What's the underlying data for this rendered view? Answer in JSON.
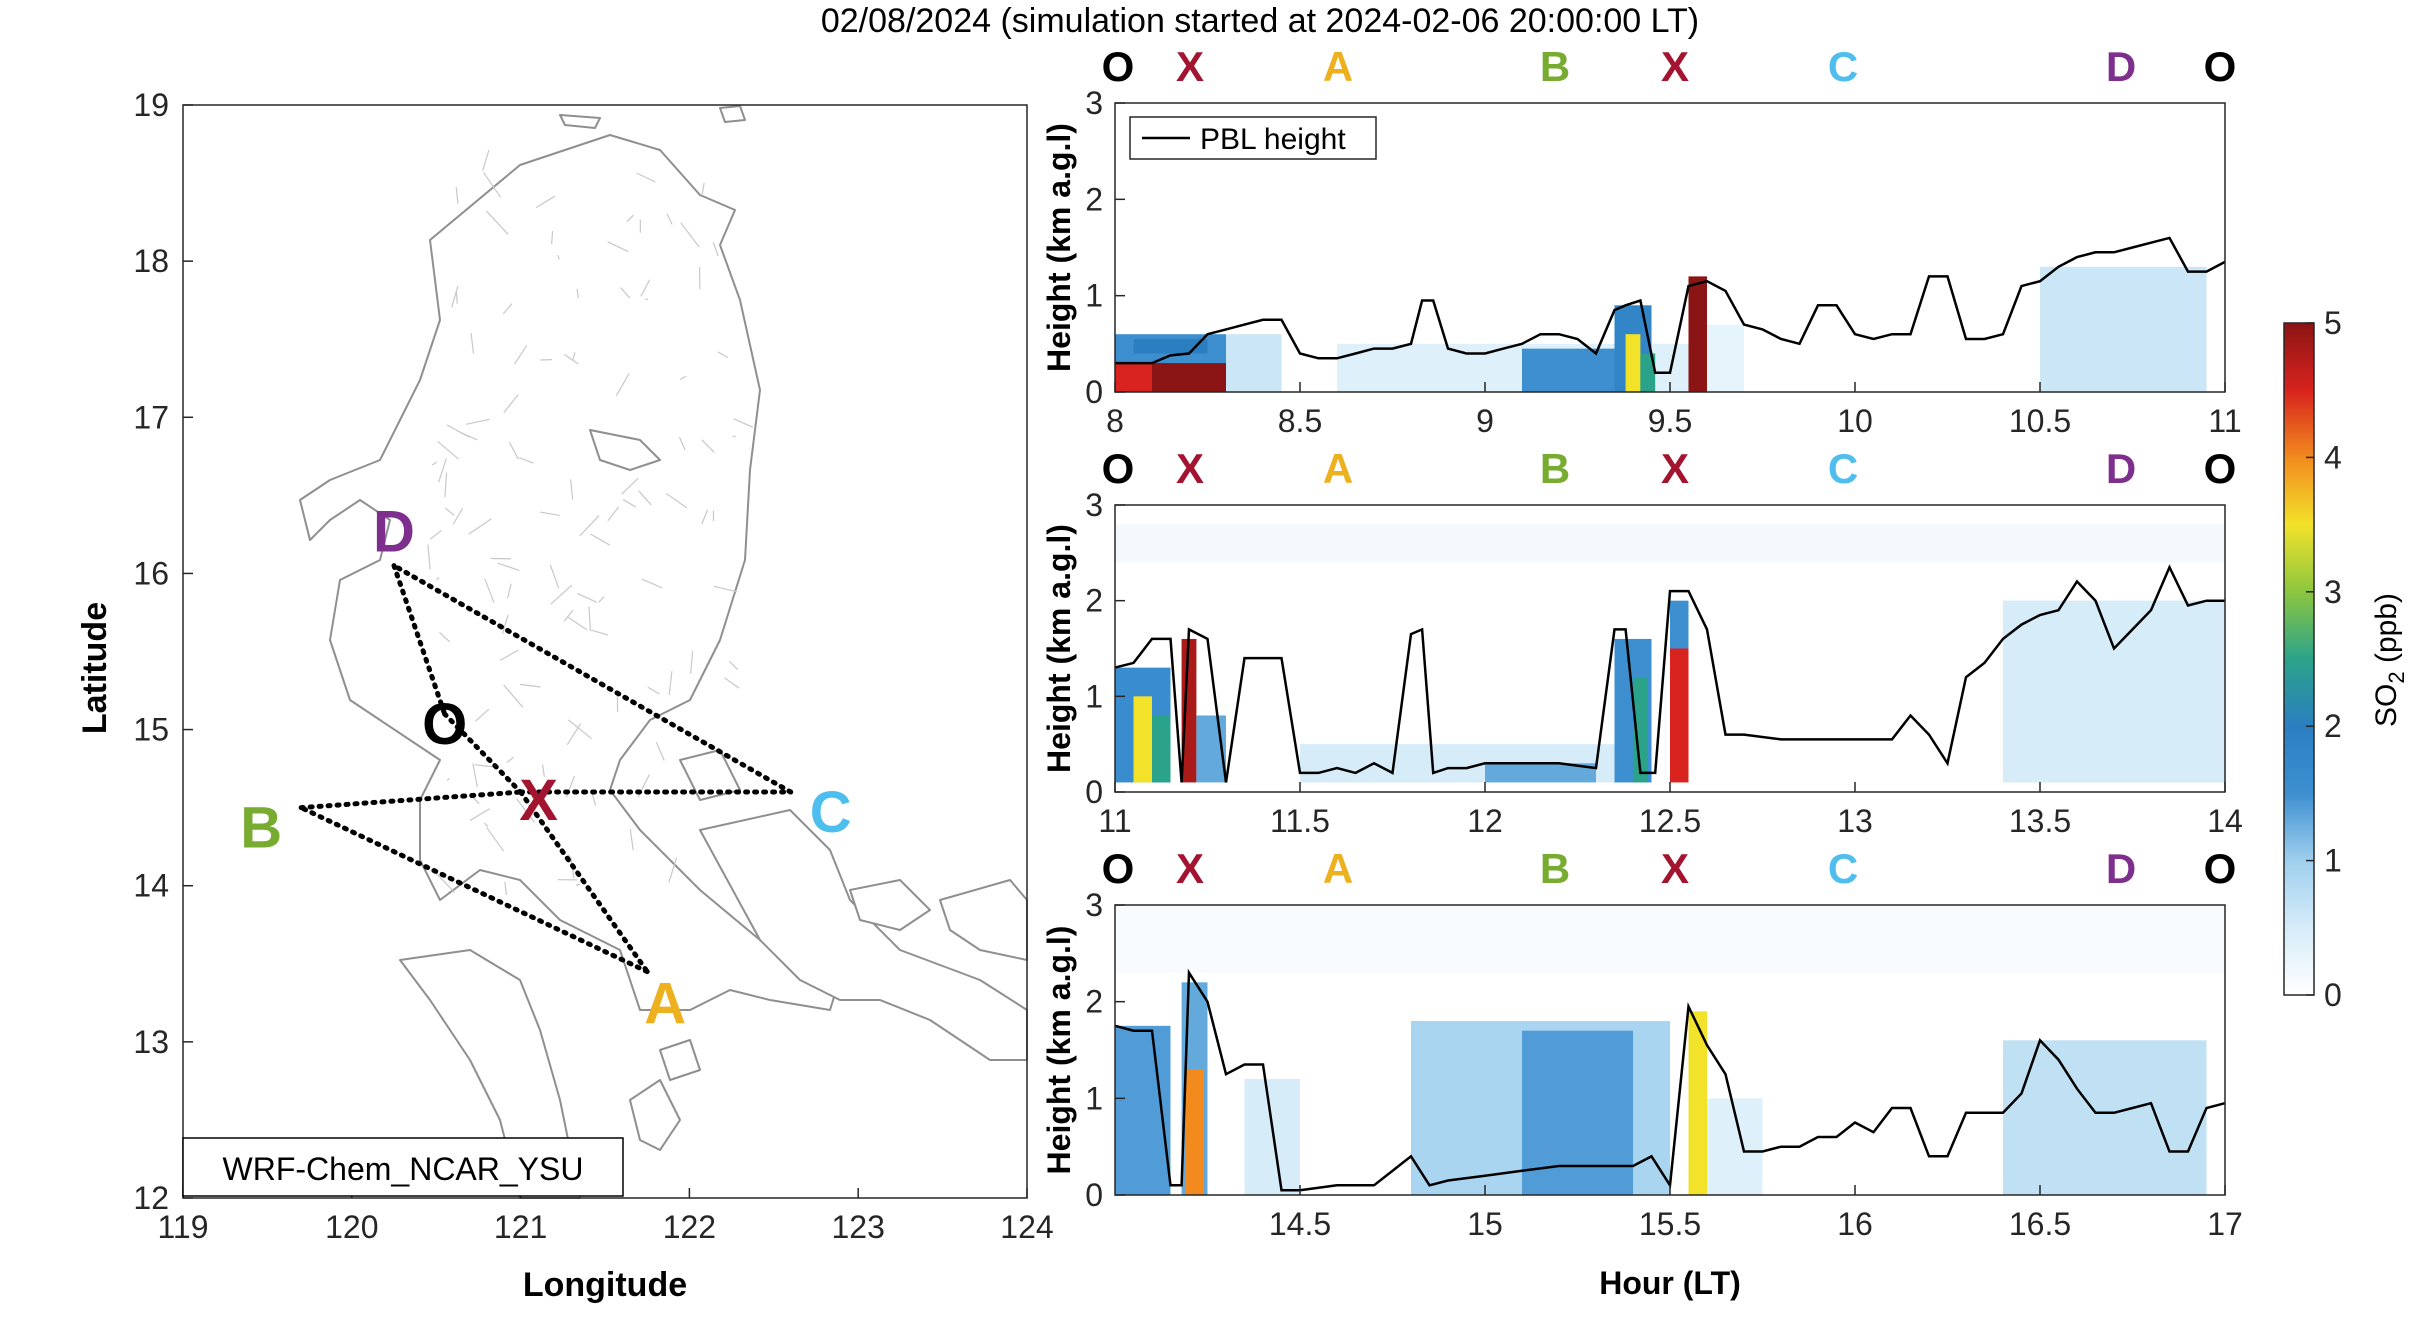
{
  "title": "02/08/2024 (simulation started at 2024-02-06 20:00:00 LT)",
  "colors": {
    "O": "#000000",
    "X": "#a2142f",
    "A": "#edb120",
    "B": "#77ac30",
    "C": "#4dbeee",
    "D": "#7e2f8e",
    "pbl": "#000000"
  },
  "route_letters": [
    "O",
    "X",
    "A",
    "B",
    "X",
    "C",
    "D",
    "O"
  ],
  "chart_data": [
    {
      "type": "map",
      "xlabel": "Longitude",
      "ylabel": "Latitude",
      "xlim": [
        119,
        124
      ],
      "ylim": [
        12,
        19
      ],
      "xticks": [
        "119",
        "120",
        "121",
        "122",
        "123",
        "124"
      ],
      "yticks": [
        "12",
        "13",
        "14",
        "15",
        "16",
        "17",
        "18",
        "19"
      ],
      "model_label": "WRF-Chem_NCAR_YSU",
      "points": [
        {
          "name": "D",
          "lon": 120.25,
          "lat": 16.05
        },
        {
          "name": "O",
          "lon": 120.55,
          "lat": 15.1
        },
        {
          "name": "X",
          "lon": 121.0,
          "lat": 14.6
        },
        {
          "name": "C",
          "lon": 122.6,
          "lat": 14.6
        },
        {
          "name": "B",
          "lon": 119.7,
          "lat": 14.5
        },
        {
          "name": "A",
          "lon": 121.75,
          "lat": 13.45
        }
      ],
      "paths": [
        [
          "D",
          "O"
        ],
        [
          "O",
          "X"
        ],
        [
          "X",
          "A"
        ],
        [
          "A",
          "B"
        ],
        [
          "B",
          "X"
        ],
        [
          "X",
          "C"
        ],
        [
          "C",
          "D"
        ]
      ]
    },
    {
      "type": "heatmap",
      "ylabel": "Height (km a.g.l)",
      "xlim": [
        8,
        11
      ],
      "ylim": [
        0,
        3
      ],
      "xticks": [
        "8",
        "8.5",
        "9",
        "9.5",
        "10",
        "10.5",
        "11"
      ],
      "yticks": [
        "0",
        "1",
        "2",
        "3"
      ],
      "legend": "PBL height",
      "pbl_height": {
        "x": [
          8.0,
          8.05,
          8.1,
          8.15,
          8.2,
          8.25,
          8.3,
          8.35,
          8.4,
          8.45,
          8.5,
          8.55,
          8.6,
          8.65,
          8.7,
          8.75,
          8.8,
          8.83,
          8.86,
          8.9,
          8.95,
          9.0,
          9.05,
          9.1,
          9.15,
          9.2,
          9.25,
          9.3,
          9.35,
          9.38,
          9.42,
          9.46,
          9.5,
          9.55,
          9.6,
          9.65,
          9.7,
          9.75,
          9.8,
          9.85,
          9.9,
          9.95,
          10.0,
          10.05,
          10.1,
          10.15,
          10.2,
          10.25,
          10.3,
          10.35,
          10.4,
          10.45,
          10.5,
          10.55,
          10.6,
          10.65,
          10.7,
          10.75,
          10.8,
          10.85,
          10.9,
          10.95,
          11.0
        ],
        "y": [
          0.3,
          0.3,
          0.3,
          0.38,
          0.4,
          0.6,
          0.65,
          0.7,
          0.75,
          0.75,
          0.4,
          0.35,
          0.35,
          0.4,
          0.45,
          0.45,
          0.5,
          0.95,
          0.95,
          0.45,
          0.4,
          0.4,
          0.45,
          0.5,
          0.6,
          0.6,
          0.55,
          0.4,
          0.85,
          0.9,
          0.95,
          0.2,
          0.2,
          1.1,
          1.15,
          1.05,
          0.7,
          0.65,
          0.55,
          0.5,
          0.9,
          0.9,
          0.6,
          0.55,
          0.6,
          0.6,
          1.2,
          1.2,
          0.55,
          0.55,
          0.6,
          1.1,
          1.15,
          1.3,
          1.4,
          1.45,
          1.45,
          1.5,
          1.55,
          1.6,
          1.25,
          1.25,
          1.35
        ]
      },
      "so2_cells": [
        {
          "x0": 8.05,
          "x1": 8.3,
          "y0": 0.0,
          "y1": 0.35,
          "v": 5
        },
        {
          "x0": 8.0,
          "x1": 8.1,
          "y0": 0.0,
          "y1": 0.3,
          "v": 4.5
        },
        {
          "x0": 8.0,
          "x1": 8.3,
          "y0": 0.3,
          "y1": 0.6,
          "v": 1.5
        },
        {
          "x0": 8.05,
          "x1": 8.25,
          "y0": 0.4,
          "y1": 0.55,
          "v": 2
        },
        {
          "x0": 8.3,
          "x1": 8.45,
          "y0": 0.0,
          "y1": 0.6,
          "v": 0.6
        },
        {
          "x0": 8.6,
          "x1": 9.6,
          "y0": 0.0,
          "y1": 0.5,
          "v": 0.4
        },
        {
          "x0": 9.1,
          "x1": 9.35,
          "y0": 0.0,
          "y1": 0.45,
          "v": 1.5
        },
        {
          "x0": 9.35,
          "x1": 9.45,
          "y0": 0.0,
          "y1": 0.9,
          "v": 1.8
        },
        {
          "x0": 9.38,
          "x1": 9.42,
          "y0": 0.0,
          "y1": 0.6,
          "v": 3.5
        },
        {
          "x0": 9.42,
          "x1": 9.46,
          "y0": 0.0,
          "y1": 0.4,
          "v": 2.5
        },
        {
          "x0": 9.55,
          "x1": 9.6,
          "y0": 0.0,
          "y1": 1.2,
          "v": 5
        },
        {
          "x0": 9.6,
          "x1": 9.7,
          "y0": 0.0,
          "y1": 0.7,
          "v": 0.3
        },
        {
          "x0": 10.5,
          "x1": 10.95,
          "y0": 0.0,
          "y1": 1.3,
          "v": 0.6
        }
      ]
    },
    {
      "type": "heatmap",
      "ylabel": "Height (km a.g.l)",
      "xlim": [
        11,
        14
      ],
      "ylim": [
        0,
        3
      ],
      "xticks": [
        "11",
        "11.5",
        "12",
        "12.5",
        "13",
        "13.5",
        "14"
      ],
      "yticks": [
        "0",
        "1",
        "2",
        "3"
      ],
      "pbl_height": {
        "x": [
          11.0,
          11.05,
          11.1,
          11.15,
          11.18,
          11.2,
          11.25,
          11.3,
          11.35,
          11.4,
          11.45,
          11.5,
          11.55,
          11.6,
          11.65,
          11.7,
          11.75,
          11.8,
          11.83,
          11.86,
          11.9,
          11.95,
          12.0,
          12.1,
          12.2,
          12.3,
          12.35,
          12.38,
          12.42,
          12.46,
          12.5,
          12.55,
          12.6,
          12.65,
          12.7,
          12.8,
          12.9,
          13.0,
          13.1,
          13.15,
          13.2,
          13.25,
          13.3,
          13.35,
          13.4,
          13.45,
          13.5,
          13.55,
          13.6,
          13.65,
          13.7,
          13.75,
          13.8,
          13.85,
          13.9,
          13.95,
          14.0
        ],
        "y": [
          1.3,
          1.35,
          1.6,
          1.6,
          0.1,
          1.7,
          1.6,
          0.1,
          1.4,
          1.4,
          1.4,
          0.2,
          0.2,
          0.25,
          0.2,
          0.3,
          0.2,
          1.65,
          1.7,
          0.2,
          0.25,
          0.25,
          0.3,
          0.3,
          0.3,
          0.25,
          1.7,
          1.7,
          0.2,
          0.2,
          2.1,
          2.1,
          1.7,
          0.6,
          0.6,
          0.55,
          0.55,
          0.55,
          0.55,
          0.8,
          0.6,
          0.3,
          1.2,
          1.35,
          1.6,
          1.75,
          1.85,
          1.9,
          2.2,
          2.0,
          1.5,
          1.7,
          1.9,
          2.35,
          1.95,
          2.0,
          2.0
        ]
      },
      "so2_cells": [
        {
          "x0": 11.0,
          "x1": 11.15,
          "y0": 0.1,
          "y1": 1.3,
          "v": 1.6
        },
        {
          "x0": 11.05,
          "x1": 11.1,
          "y0": 0.1,
          "y1": 1.0,
          "v": 3.5
        },
        {
          "x0": 11.1,
          "x1": 11.15,
          "y0": 0.1,
          "y1": 0.8,
          "v": 2.5
        },
        {
          "x0": 11.18,
          "x1": 11.22,
          "y0": 0.1,
          "y1": 1.6,
          "v": 4.8
        },
        {
          "x0": 11.22,
          "x1": 11.3,
          "y0": 0.1,
          "y1": 0.8,
          "v": 1.3
        },
        {
          "x0": 11.5,
          "x1": 12.4,
          "y0": 0.1,
          "y1": 0.5,
          "v": 0.5
        },
        {
          "x0": 12.0,
          "x1": 12.3,
          "y0": 0.1,
          "y1": 0.3,
          "v": 1.3
        },
        {
          "x0": 12.35,
          "x1": 12.45,
          "y0": 0.1,
          "y1": 1.6,
          "v": 1.5
        },
        {
          "x0": 12.4,
          "x1": 12.44,
          "y0": 0.1,
          "y1": 1.2,
          "v": 2.5
        },
        {
          "x0": 12.5,
          "x1": 12.55,
          "y0": 0.1,
          "y1": 1.5,
          "v": 4.5
        },
        {
          "x0": 12.5,
          "x1": 12.55,
          "y0": 1.5,
          "y1": 2.0,
          "v": 1.5
        },
        {
          "x0": 13.4,
          "x1": 14.0,
          "y0": 0.1,
          "y1": 2.0,
          "v": 0.5
        },
        {
          "x0": 11.0,
          "x1": 14.0,
          "y0": 2.4,
          "y1": 2.8,
          "v": 0.15
        }
      ]
    },
    {
      "type": "heatmap",
      "ylabel": "Height (km a.g.l)",
      "xlabel": "Hour (LT)",
      "xlim": [
        14,
        17
      ],
      "ylim": [
        0,
        3
      ],
      "xticks": [
        "14.5",
        "15",
        "15.5",
        "16",
        "16.5",
        "17"
      ],
      "yticks": [
        "0",
        "1",
        "2",
        "3"
      ],
      "pbl_height": {
        "x": [
          14.0,
          14.05,
          14.1,
          14.15,
          14.18,
          14.2,
          14.25,
          14.3,
          14.35,
          14.4,
          14.45,
          14.5,
          14.6,
          14.7,
          14.8,
          14.85,
          14.9,
          15.0,
          15.1,
          15.2,
          15.3,
          15.4,
          15.45,
          15.5,
          15.55,
          15.6,
          15.65,
          15.7,
          15.75,
          15.8,
          15.85,
          15.9,
          15.95,
          16.0,
          16.05,
          16.1,
          16.15,
          16.2,
          16.25,
          16.3,
          16.35,
          16.4,
          16.45,
          16.5,
          16.55,
          16.6,
          16.65,
          16.7,
          16.75,
          16.8,
          16.85,
          16.9,
          16.95,
          17.0
        ],
        "y": [
          1.75,
          1.7,
          1.7,
          0.1,
          0.1,
          2.3,
          2.0,
          1.25,
          1.35,
          1.35,
          0.05,
          0.05,
          0.1,
          0.1,
          0.4,
          0.1,
          0.15,
          0.2,
          0.25,
          0.3,
          0.3,
          0.3,
          0.4,
          0.1,
          1.95,
          1.55,
          1.25,
          0.45,
          0.45,
          0.5,
          0.5,
          0.6,
          0.6,
          0.75,
          0.65,
          0.9,
          0.9,
          0.4,
          0.4,
          0.85,
          0.85,
          0.85,
          1.05,
          1.6,
          1.4,
          1.1,
          0.85,
          0.85,
          0.9,
          0.95,
          0.45,
          0.45,
          0.9,
          0.95
        ]
      },
      "so2_cells": [
        {
          "x0": 14.0,
          "x1": 14.15,
          "y0": 0.0,
          "y1": 1.75,
          "v": 1.4
        },
        {
          "x0": 14.18,
          "x1": 14.25,
          "y0": 0.0,
          "y1": 2.2,
          "v": 1.3
        },
        {
          "x0": 14.19,
          "x1": 14.24,
          "y0": 0.0,
          "y1": 1.3,
          "v": 4.0
        },
        {
          "x0": 14.35,
          "x1": 14.5,
          "y0": 0.0,
          "y1": 1.2,
          "v": 0.5
        },
        {
          "x0": 14.8,
          "x1": 15.5,
          "y0": 0.0,
          "y1": 1.8,
          "v": 0.9
        },
        {
          "x0": 15.1,
          "x1": 15.4,
          "y0": 0.0,
          "y1": 1.7,
          "v": 1.4
        },
        {
          "x0": 15.55,
          "x1": 15.6,
          "y0": 0.0,
          "y1": 1.9,
          "v": 3.5
        },
        {
          "x0": 15.6,
          "x1": 15.75,
          "y0": 0.0,
          "y1": 1.0,
          "v": 0.4
        },
        {
          "x0": 16.4,
          "x1": 16.95,
          "y0": 0.0,
          "y1": 1.6,
          "v": 0.7
        },
        {
          "x0": 14.0,
          "x1": 17.0,
          "y0": 2.3,
          "y1": 3.0,
          "v": 0.1
        }
      ]
    }
  ],
  "colorbar": {
    "label": "SO2 (ppb)",
    "label_main": "SO",
    "label_sub": "2",
    "label_unit": " (ppb)",
    "min": 0,
    "max": 5,
    "ticks": [
      "0",
      "1",
      "2",
      "3",
      "4",
      "5"
    ]
  }
}
